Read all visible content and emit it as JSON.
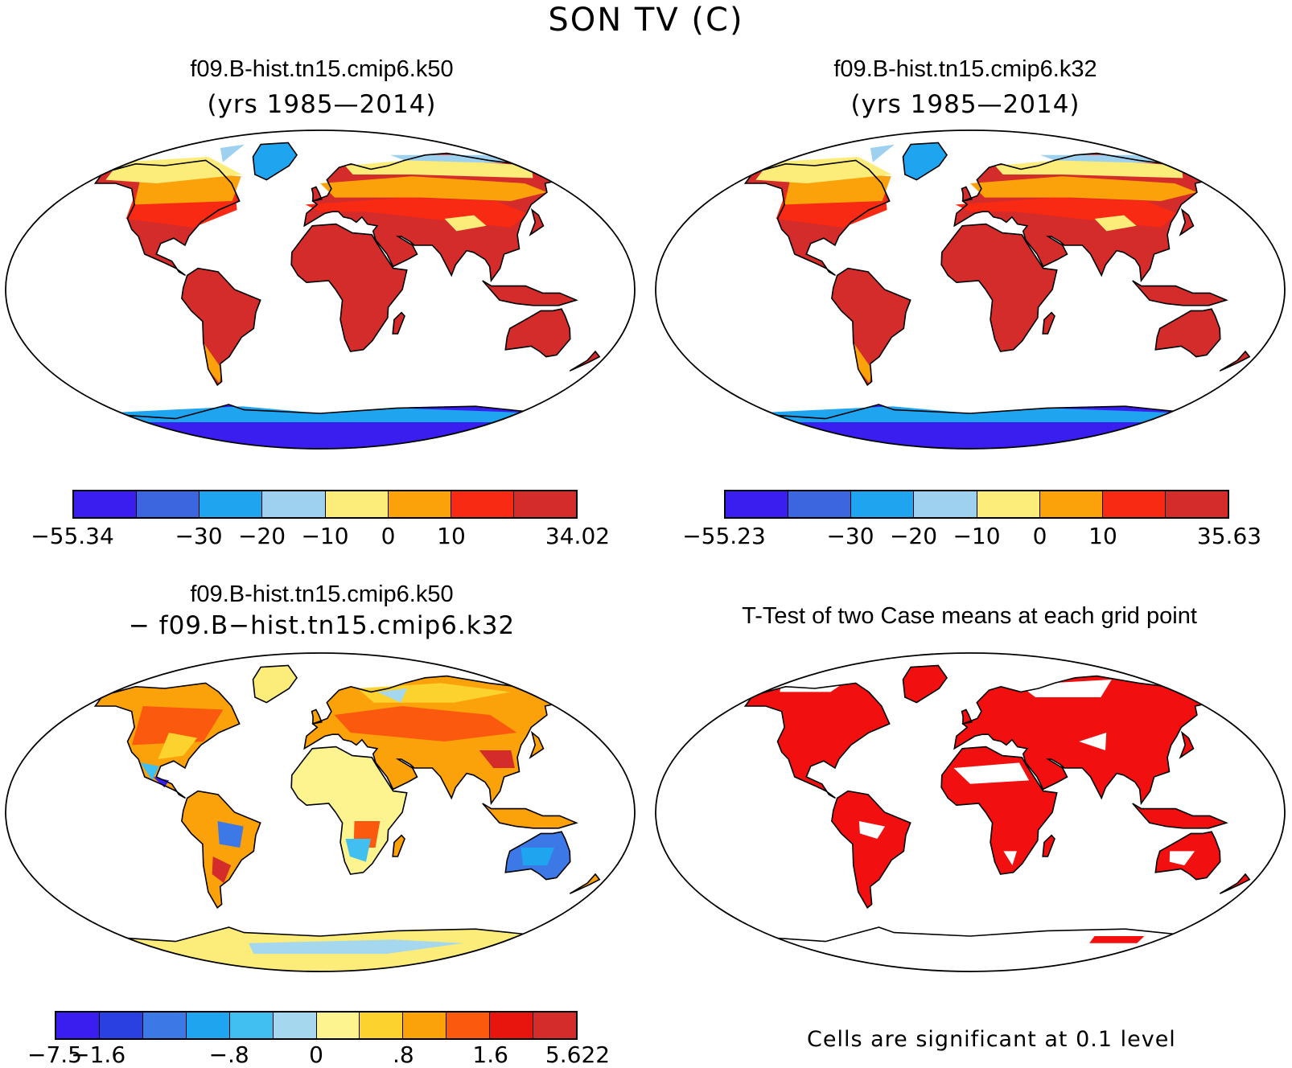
{
  "figure": {
    "title": "SON TV (C)"
  },
  "panels": {
    "p1": {
      "title": "f09.B-hist.tn15.cmip6.k50",
      "subtitle": "(yrs 1985—2014)",
      "colorbar": {
        "colors": [
          "#3a1ef0",
          "#3c65e0",
          "#1fa4f0",
          "#9dd1ef",
          "#fcec7a",
          "#fba10a",
          "#f82a14",
          "#d42b2b"
        ],
        "ticks": [
          "−55.34",
          "−30",
          "−20",
          "−10",
          "0",
          "10",
          "34.02"
        ]
      }
    },
    "p2": {
      "title": "f09.B-hist.tn15.cmip6.k32",
      "subtitle": "(yrs 1985—2014)",
      "colorbar": {
        "colors": [
          "#3a1ef0",
          "#3c65e0",
          "#1fa4f0",
          "#9dd1ef",
          "#fcec7a",
          "#fba10a",
          "#f82a14",
          "#d42b2b"
        ],
        "ticks": [
          "−55.23",
          "−30",
          "−20",
          "−10",
          "0",
          "10",
          "35.63"
        ]
      }
    },
    "p3": {
      "title": "f09.B-hist.tn15.cmip6.k50",
      "subtitle": "− f09.B−hist.tn15.cmip6.k32",
      "colorbar": {
        "colors": [
          "#3a1ef0",
          "#2a40e0",
          "#3c78e6",
          "#1fa4f0",
          "#40bff0",
          "#a5d7ef",
          "#fdf38f",
          "#fcd22e",
          "#fba10a",
          "#fb5a0e",
          "#e8150f",
          "#d42b2b"
        ],
        "ticks": [
          "−7.5",
          "−1.6",
          "−.8",
          "0",
          ".8",
          "1.6",
          "5.622"
        ]
      }
    },
    "p4": {
      "title": "T-Test of two Case means at each grid point",
      "note": "Cells are significant at 0.1 level",
      "significance_color": "#f20f0f"
    }
  }
}
